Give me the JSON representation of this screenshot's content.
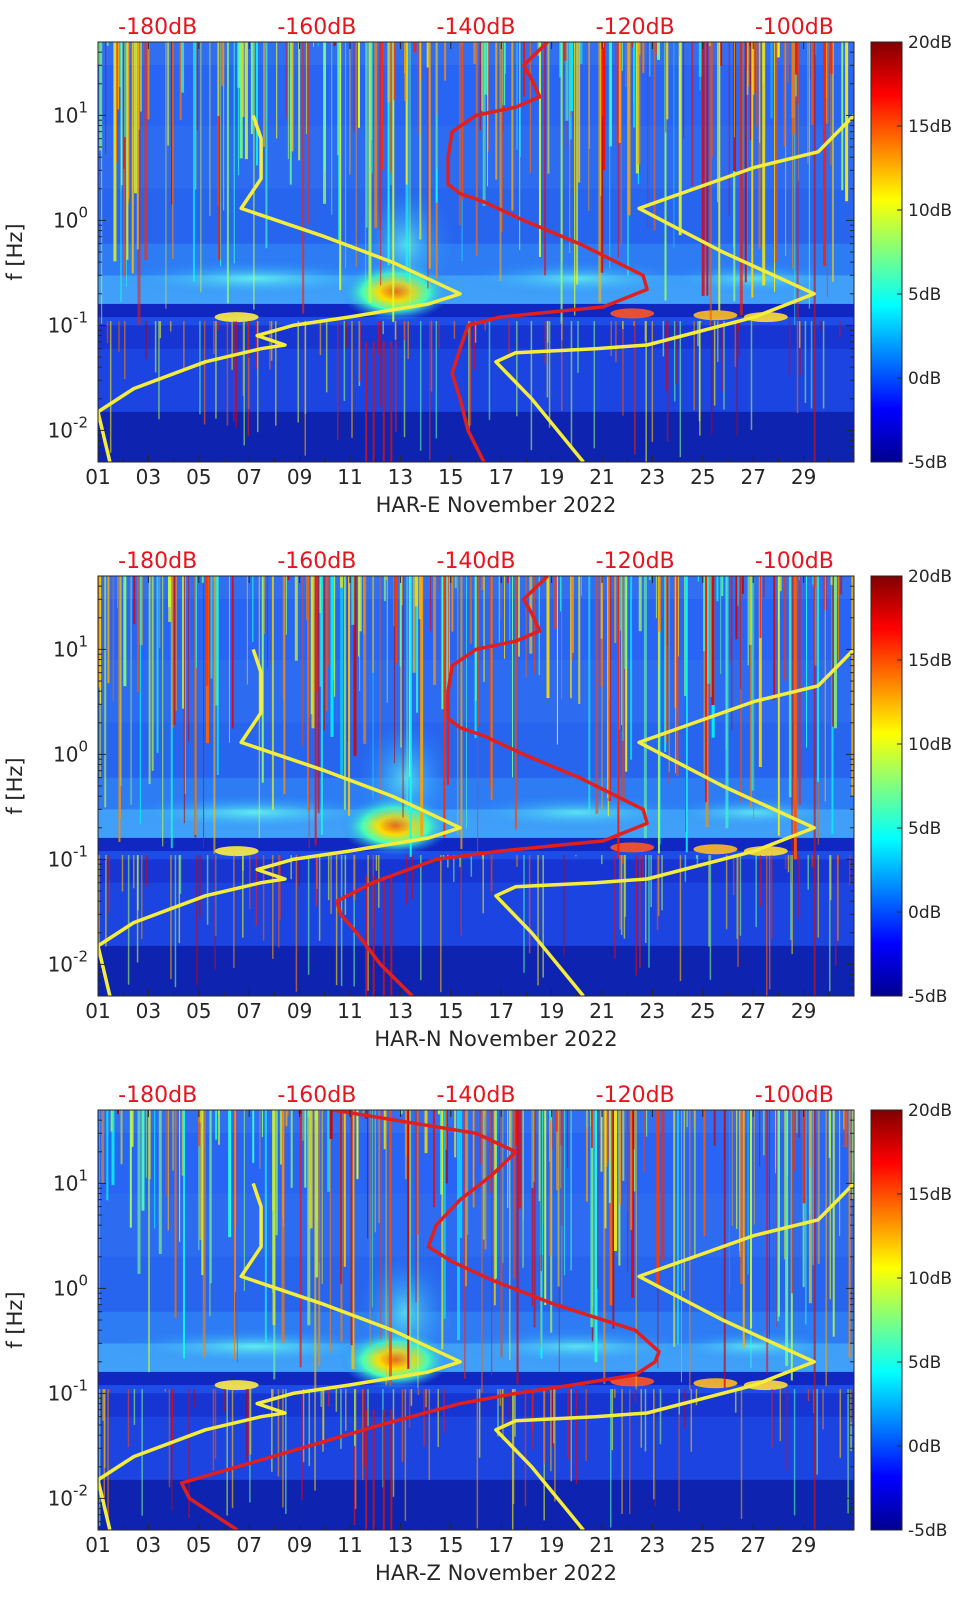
{
  "chart_data": [
    {
      "type": "heatmap",
      "title": "",
      "xlabel": "HAR-E November 2022",
      "ylabel": "f [Hz]",
      "x_tick_labels": [
        "01",
        "03",
        "05",
        "07",
        "09",
        "11",
        "13",
        "15",
        "17",
        "19",
        "21",
        "23",
        "25",
        "27",
        "29"
      ],
      "x_tick_days": [
        1,
        3,
        5,
        7,
        9,
        11,
        13,
        15,
        17,
        19,
        21,
        23,
        25,
        27,
        29
      ],
      "xlim": [
        1,
        31
      ],
      "y_scale": "log",
      "ylim": [
        0.005,
        50
      ],
      "y_tick_labels": [
        "10^-2",
        "10^-1",
        "10^0",
        "10^1"
      ],
      "y_ticks": [
        0.01,
        0.1,
        1,
        10
      ],
      "top_axis": {
        "color": "#e8141b",
        "tick_labels": [
          "-180dB",
          "-160dB",
          "-140dB",
          "-120dB",
          "-100dB"
        ],
        "ticks": [
          -180,
          -160,
          -140,
          -120,
          -100
        ],
        "xlim": [
          -187.5,
          -92.5
        ]
      },
      "colorbar": {
        "tick_labels": [
          "20dB",
          "15dB",
          "10dB",
          "5dB",
          "0dB",
          "-5dB"
        ],
        "ticks": [
          20,
          15,
          10,
          5,
          0,
          -5
        ],
        "range": [
          -5,
          20
        ],
        "colormap": "jet"
      },
      "series": [
        {
          "color": "#f5ed3c",
          "f": [
            10,
            6,
            2.5,
            1.3,
            0.7,
            0.4,
            0.2,
            0.16,
            0.12,
            0.1,
            0.08,
            0.065,
            0.06,
            0.045,
            0.025,
            0.015,
            0.005
          ],
          "db": [
            -168,
            -167,
            -167,
            -169.5,
            -159,
            -150.5,
            -142,
            -146,
            -156,
            -163,
            -167.5,
            -164,
            -167,
            -174,
            -183,
            -187.5,
            -186
          ]
        },
        {
          "color": "#f5ed3c",
          "f": [
            10,
            4.5,
            3.2,
            1.3,
            0.5,
            0.2,
            0.12,
            0.065,
            0.06,
            0.055,
            0.045,
            0.02,
            0.005
          ],
          "db": [
            -92.5,
            -97,
            -105,
            -119.5,
            -109,
            -97.5,
            -105,
            -118.5,
            -125,
            -135,
            -137.5,
            -133,
            -126.5
          ]
        },
        {
          "color": "#e01f1f",
          "f": [
            50,
            30,
            22,
            15,
            12,
            10,
            7,
            4,
            2.2,
            1.8,
            1.5,
            1,
            0.6,
            0.3,
            0.22,
            0.15,
            0.12,
            0.1,
            0.06,
            0.035,
            0.02,
            0.01,
            0.005
          ],
          "db": [
            -131,
            -134,
            -133,
            -132,
            -135,
            -140,
            -143,
            -143.5,
            -143.5,
            -142,
            -139,
            -134,
            -127,
            -119,
            -118.5,
            -124,
            -137,
            -141,
            -142,
            -143,
            -142,
            -141,
            -139
          ]
        }
      ]
    },
    {
      "type": "heatmap",
      "title": "",
      "xlabel": "HAR-N November 2022",
      "ylabel": "f [Hz]",
      "x_tick_labels": [
        "01",
        "03",
        "05",
        "07",
        "09",
        "11",
        "13",
        "15",
        "17",
        "19",
        "21",
        "23",
        "25",
        "27",
        "29"
      ],
      "x_tick_days": [
        1,
        3,
        5,
        7,
        9,
        11,
        13,
        15,
        17,
        19,
        21,
        23,
        25,
        27,
        29
      ],
      "xlim": [
        1,
        31
      ],
      "y_scale": "log",
      "ylim": [
        0.005,
        50
      ],
      "y_tick_labels": [
        "10^-2",
        "10^-1",
        "10^0",
        "10^1"
      ],
      "y_ticks": [
        0.01,
        0.1,
        1,
        10
      ],
      "top_axis": {
        "color": "#e8141b",
        "tick_labels": [
          "-180dB",
          "-160dB",
          "-140dB",
          "-120dB",
          "-100dB"
        ],
        "ticks": [
          -180,
          -160,
          -140,
          -120,
          -100
        ],
        "xlim": [
          -187.5,
          -92.5
        ]
      },
      "colorbar": {
        "tick_labels": [
          "20dB",
          "15dB",
          "10dB",
          "5dB",
          "0dB",
          "-5dB"
        ],
        "ticks": [
          20,
          15,
          10,
          5,
          0,
          -5
        ],
        "range": [
          -5,
          20
        ],
        "colormap": "jet"
      },
      "series": [
        {
          "color": "#f5ed3c",
          "f": [
            10,
            6,
            2.5,
            1.3,
            0.7,
            0.4,
            0.2,
            0.16,
            0.12,
            0.1,
            0.08,
            0.065,
            0.06,
            0.045,
            0.025,
            0.015,
            0.005
          ],
          "db": [
            -168,
            -167,
            -167,
            -169.5,
            -159,
            -150.5,
            -142,
            -146,
            -156,
            -163,
            -167.5,
            -164,
            -167,
            -174,
            -183,
            -187.5,
            -186
          ]
        },
        {
          "color": "#f5ed3c",
          "f": [
            10,
            4.5,
            3.2,
            1.3,
            0.5,
            0.2,
            0.12,
            0.065,
            0.06,
            0.055,
            0.045,
            0.02,
            0.005
          ],
          "db": [
            -92.5,
            -97,
            -105,
            -119.5,
            -109,
            -97.5,
            -105,
            -118.5,
            -125,
            -135,
            -137.5,
            -133,
            -126.5
          ]
        },
        {
          "color": "#e01f1f",
          "f": [
            50,
            30,
            22,
            15,
            12,
            10,
            7,
            4,
            2.2,
            1.8,
            1.5,
            1,
            0.6,
            0.3,
            0.22,
            0.15,
            0.12,
            0.1,
            0.06,
            0.04,
            0.03,
            0.02,
            0.01,
            0.005
          ],
          "db": [
            -131,
            -134,
            -133,
            -132,
            -135,
            -140,
            -143,
            -143.5,
            -143.5,
            -142,
            -139,
            -134,
            -127,
            -119,
            -118.5,
            -124,
            -137,
            -145,
            -153,
            -157.5,
            -157,
            -155,
            -152,
            -148
          ]
        }
      ]
    },
    {
      "type": "heatmap",
      "title": "",
      "xlabel": "HAR-Z November 2022",
      "ylabel": "f [Hz]",
      "x_tick_labels": [
        "01",
        "03",
        "05",
        "07",
        "09",
        "11",
        "13",
        "15",
        "17",
        "19",
        "21",
        "23",
        "25",
        "27",
        "29"
      ],
      "x_tick_days": [
        1,
        3,
        5,
        7,
        9,
        11,
        13,
        15,
        17,
        19,
        21,
        23,
        25,
        27,
        29
      ],
      "xlim": [
        1,
        31
      ],
      "y_scale": "log",
      "ylim": [
        0.005,
        50
      ],
      "y_tick_labels": [
        "10^-2",
        "10^-1",
        "10^0",
        "10^1"
      ],
      "y_ticks": [
        0.01,
        0.1,
        1,
        10
      ],
      "top_axis": {
        "color": "#e8141b",
        "tick_labels": [
          "-180dB",
          "-160dB",
          "-140dB",
          "-120dB",
          "-100dB"
        ],
        "ticks": [
          -180,
          -160,
          -140,
          -120,
          -100
        ],
        "xlim": [
          -187.5,
          -92.5
        ]
      },
      "colorbar": {
        "tick_labels": [
          "20dB",
          "15dB",
          "10dB",
          "5dB",
          "0dB",
          "-5dB"
        ],
        "ticks": [
          20,
          15,
          10,
          5,
          0,
          -5
        ],
        "range": [
          -5,
          20
        ],
        "colormap": "jet"
      },
      "series": [
        {
          "color": "#f5ed3c",
          "f": [
            10,
            6,
            2.5,
            1.3,
            0.7,
            0.4,
            0.2,
            0.16,
            0.12,
            0.1,
            0.08,
            0.065,
            0.06,
            0.045,
            0.025,
            0.015,
            0.005
          ],
          "db": [
            -168,
            -167,
            -167,
            -169.5,
            -159,
            -150.5,
            -142,
            -146,
            -156,
            -163,
            -167.5,
            -164,
            -167,
            -174,
            -183,
            -187.5,
            -186
          ]
        },
        {
          "color": "#f5ed3c",
          "f": [
            10,
            4.5,
            3.2,
            1.3,
            0.5,
            0.2,
            0.12,
            0.065,
            0.06,
            0.055,
            0.045,
            0.02,
            0.005
          ],
          "db": [
            -92.5,
            -97,
            -105,
            -119.5,
            -109,
            -97.5,
            -105,
            -118.5,
            -125,
            -135,
            -137.5,
            -133,
            -126.5
          ]
        },
        {
          "color": "#e01f1f",
          "f": [
            50,
            30,
            20,
            12,
            7,
            4,
            2.5,
            1.8,
            1.2,
            0.7,
            0.4,
            0.25,
            0.2,
            0.15,
            0.12,
            0.1,
            0.08,
            0.05,
            0.03,
            0.02,
            0.014,
            0.01,
            0.005
          ],
          "db": [
            -158,
            -140,
            -135,
            -138,
            -142,
            -145,
            -146,
            -143,
            -138,
            -130,
            -120,
            -117,
            -117.5,
            -120,
            -128,
            -135,
            -142,
            -152,
            -162,
            -170,
            -177,
            -176,
            -170
          ]
        }
      ]
    }
  ]
}
